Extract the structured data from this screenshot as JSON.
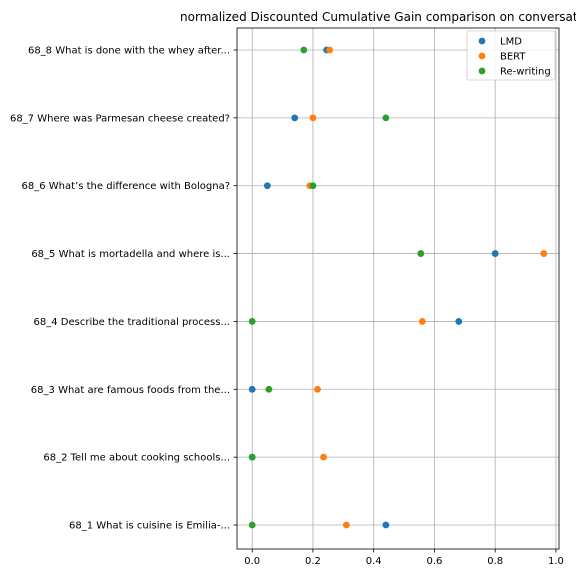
{
  "chart_data": {
    "type": "scatter",
    "title": "normalized Discounted Cumulative Gain comparison on conversat",
    "xlabel": "",
    "ylabel": "",
    "xlim": [
      -0.05,
      1.01
    ],
    "xticks": [
      "0.0",
      "0.2",
      "0.4",
      "0.6",
      "0.8",
      "1.0"
    ],
    "xtick_values": [
      0.0,
      0.2,
      0.4,
      0.6,
      0.8,
      1.0
    ],
    "grid": true,
    "legend_position": "top-right",
    "categories": [
      "68_1 What is cuisine is Emilia-...",
      "68_2 Tell me about cooking schools...",
      "68_3 What are famous foods from the...",
      "68_4 Describe the traditional process...",
      "68_5 What is mortadella and where is...",
      "68_6 What’s the difference with Bologna?",
      "68_7 Where was Parmesan cheese created?",
      "68_8 What is done with the whey after..."
    ],
    "series": [
      {
        "name": "LMD",
        "color": "#1f77b4",
        "values": [
          0.44,
          0.0,
          0.0,
          0.68,
          0.8,
          0.05,
          0.14,
          0.245
        ]
      },
      {
        "name": "BERT",
        "color": "#ff7f0e",
        "values": [
          0.31,
          0.235,
          0.215,
          0.56,
          0.96,
          0.19,
          0.2,
          0.255
        ]
      },
      {
        "name": "Re-writing",
        "color": "#2ca02c",
        "values": [
          0.0,
          0.0,
          0.055,
          0.0,
          0.555,
          0.2,
          0.44,
          0.17
        ]
      }
    ]
  }
}
